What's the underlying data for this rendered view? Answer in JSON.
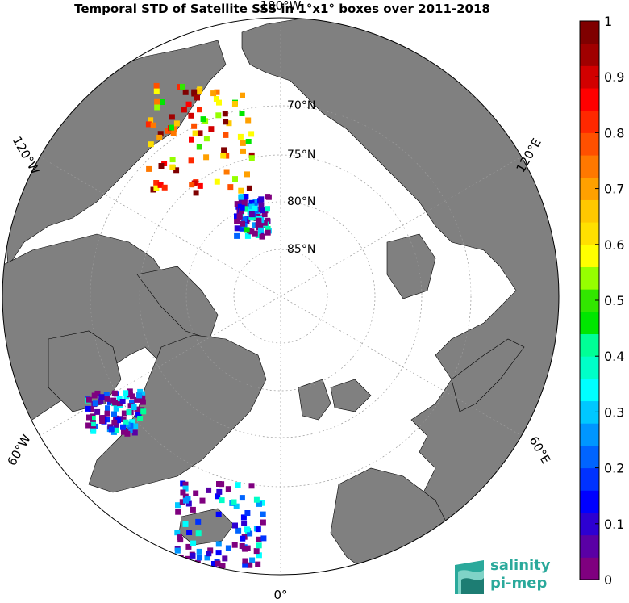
{
  "title": "Temporal STD of Satellite SSS in 1°x1° boxes over 2011-2018",
  "logo": {
    "line1": "salinity",
    "line2": "pi-mep"
  },
  "map": {
    "projection": "north-polar-stereographic",
    "land_color": "#808080",
    "ocean_color": "#ffffff",
    "longitude_labels": [
      {
        "text": "180°W",
        "angle": 0
      },
      {
        "text": "120°E",
        "angle": 60
      },
      {
        "text": "60°E",
        "angle": 120
      },
      {
        "text": "0°",
        "angle": 180
      },
      {
        "text": "60°W",
        "angle": 240
      },
      {
        "text": "120°W",
        "angle": 300
      }
    ],
    "latitude_labels": [
      {
        "text": "70°N",
        "lat": 70
      },
      {
        "text": "75°N",
        "lat": 75
      },
      {
        "text": "80°N",
        "lat": 80
      },
      {
        "text": "85°N",
        "lat": 85
      }
    ]
  },
  "chart_data": {
    "type": "heatmap",
    "title": "Temporal STD of Satellite SSS in 1°x1° boxes over 2011-2018",
    "colorbar": {
      "min": 0,
      "max": 1,
      "ticks": [
        "0",
        "0.1",
        "0.2",
        "0.3",
        "0.4",
        "0.5",
        "0.6",
        "0.7",
        "0.8",
        "0.9",
        "1"
      ],
      "colors": [
        "#7f007f",
        "#5a00a5",
        "#2d00d2",
        "#0000ff",
        "#0032ff",
        "#0064ff",
        "#0096ff",
        "#00c8ff",
        "#00ffff",
        "#00ffc8",
        "#00ff96",
        "#00e600",
        "#32e600",
        "#96ff00",
        "#ffff00",
        "#ffe000",
        "#ffc800",
        "#ffa000",
        "#ff7800",
        "#ff5000",
        "#ff2800",
        "#ff0000",
        "#d20000",
        "#a00000",
        "#7f0000"
      ]
    }
  }
}
